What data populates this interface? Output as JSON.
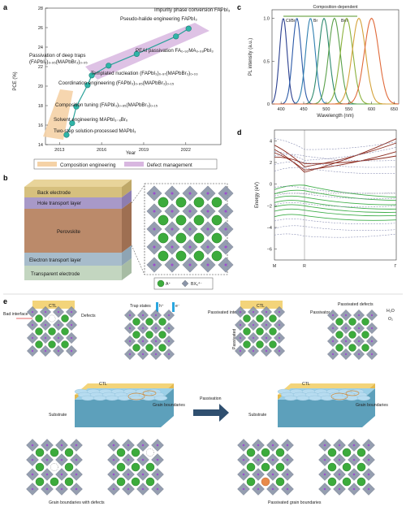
{
  "panels": {
    "a": "a",
    "b": "b",
    "c": "c",
    "d": "d",
    "e": "e"
  },
  "panel_a": {
    "ylabel": "PCE (%)",
    "xlabel": "Year",
    "yticks": [
      "14",
      "16",
      "18",
      "20",
      "22",
      "24",
      "26",
      "28"
    ],
    "xticks": [
      "2013",
      "2016",
      "2019",
      "2022"
    ],
    "annotations": [
      "Impurity phase conversion FAPbI₃",
      "Pseudo-halide engineering FAPbI₃",
      "PEAI passivation FA₀.₉₂MA₀.₀₈PbI₃",
      "Passivation of deep traps",
      "(FAPbI₃)₀.₉₅(MAPbBr₃)₀.₀₅",
      "Templated nucleation (FAPbI₃)₀.₉₇(MAPbBr₃)₀.₀₃",
      "Coordination engineering (FAPbI₃)₀.₈₅(MAPbBr₃)₀.₁₅",
      "Composition tuning (FAPbI₃)₀.₈₅(MAPbBr₃)₀.₁₅",
      "Solvent engineering MAPbI₃₋ₓBrₓ",
      "Two-step solution-processed MAPbI₃"
    ],
    "legend": [
      "Composition engineering",
      "Defect management"
    ]
  },
  "chart_data": [
    {
      "type": "scatter",
      "xlabel": "Year",
      "ylabel": "PCE (%)",
      "xlim": [
        2012,
        2024.5
      ],
      "ylim": [
        14,
        28
      ],
      "series": [
        {
          "x": [
            2013.5,
            2013.9,
            2014.2,
            2015.0,
            2015.3,
            2016.5,
            2018.5,
            2021.3,
            2022.2
          ],
          "y": [
            15.0,
            16.2,
            17.9,
            20.1,
            21.1,
            22.1,
            23.3,
            25.1,
            25.9
          ]
        }
      ]
    },
    {
      "type": "line",
      "title": "Composition-dependent",
      "xlabel": "Wavelength (nm)",
      "ylabel": "PL intensity (a.u.)",
      "xlim": [
        380,
        660
      ],
      "ylim": [
        0,
        1.1
      ],
      "series_labels": [
        "Cl/Br",
        "Br",
        "Br/I"
      ],
      "peaks_nm": [
        405,
        435,
        465,
        495,
        518,
        545,
        572,
        600
      ],
      "colors": [
        "#2a3f8f",
        "#2c5aa8",
        "#2f7fb0",
        "#2e8a6e",
        "#5aa04a",
        "#8bb13c",
        "#d4a23a",
        "#e06a3a"
      ]
    }
  ],
  "panel_c": {
    "xticks": [
      "400",
      "450",
      "500",
      "550",
      "600",
      "650"
    ],
    "yticks": [
      "0",
      "0.5",
      "1.0"
    ]
  },
  "panel_d": {
    "ylabel": "Energy (eV)",
    "yticks": [
      "4",
      "2",
      "0",
      "−2",
      "−4",
      "−6"
    ],
    "kpoints": [
      "M",
      "R",
      "Γ"
    ]
  },
  "panel_b": {
    "layers": [
      "Back electrode",
      "Hole transport layer",
      "Perovskite",
      "Electron transport layer",
      "Transparent electrode"
    ],
    "legend": [
      "A⁺",
      "BX₆⁴⁻"
    ]
  },
  "panel_e": {
    "left": {
      "ctl": "CTL",
      "bad": "Bad interface",
      "defects": "Defects",
      "trap": "Trap states",
      "h": "h⁺",
      "e": "e⁻",
      "ctl2": "CTL",
      "substrate": "Substrate",
      "grain": "Grain boundaries",
      "caption": "Grain boundaries with defects"
    },
    "arrow": "Passivation",
    "right": {
      "ctl": "CTL",
      "passivated_interface": "Passivated interface",
      "passivated": "Passivated",
      "passivator": "Passivator",
      "passivated_defects": "Passivated defects",
      "h2o": "H₂O",
      "o2": "O₂",
      "ctl2": "CTL",
      "substrate": "Substrate",
      "grain": "Grain boundaries",
      "caption": "Passivated grain boundaries"
    }
  }
}
